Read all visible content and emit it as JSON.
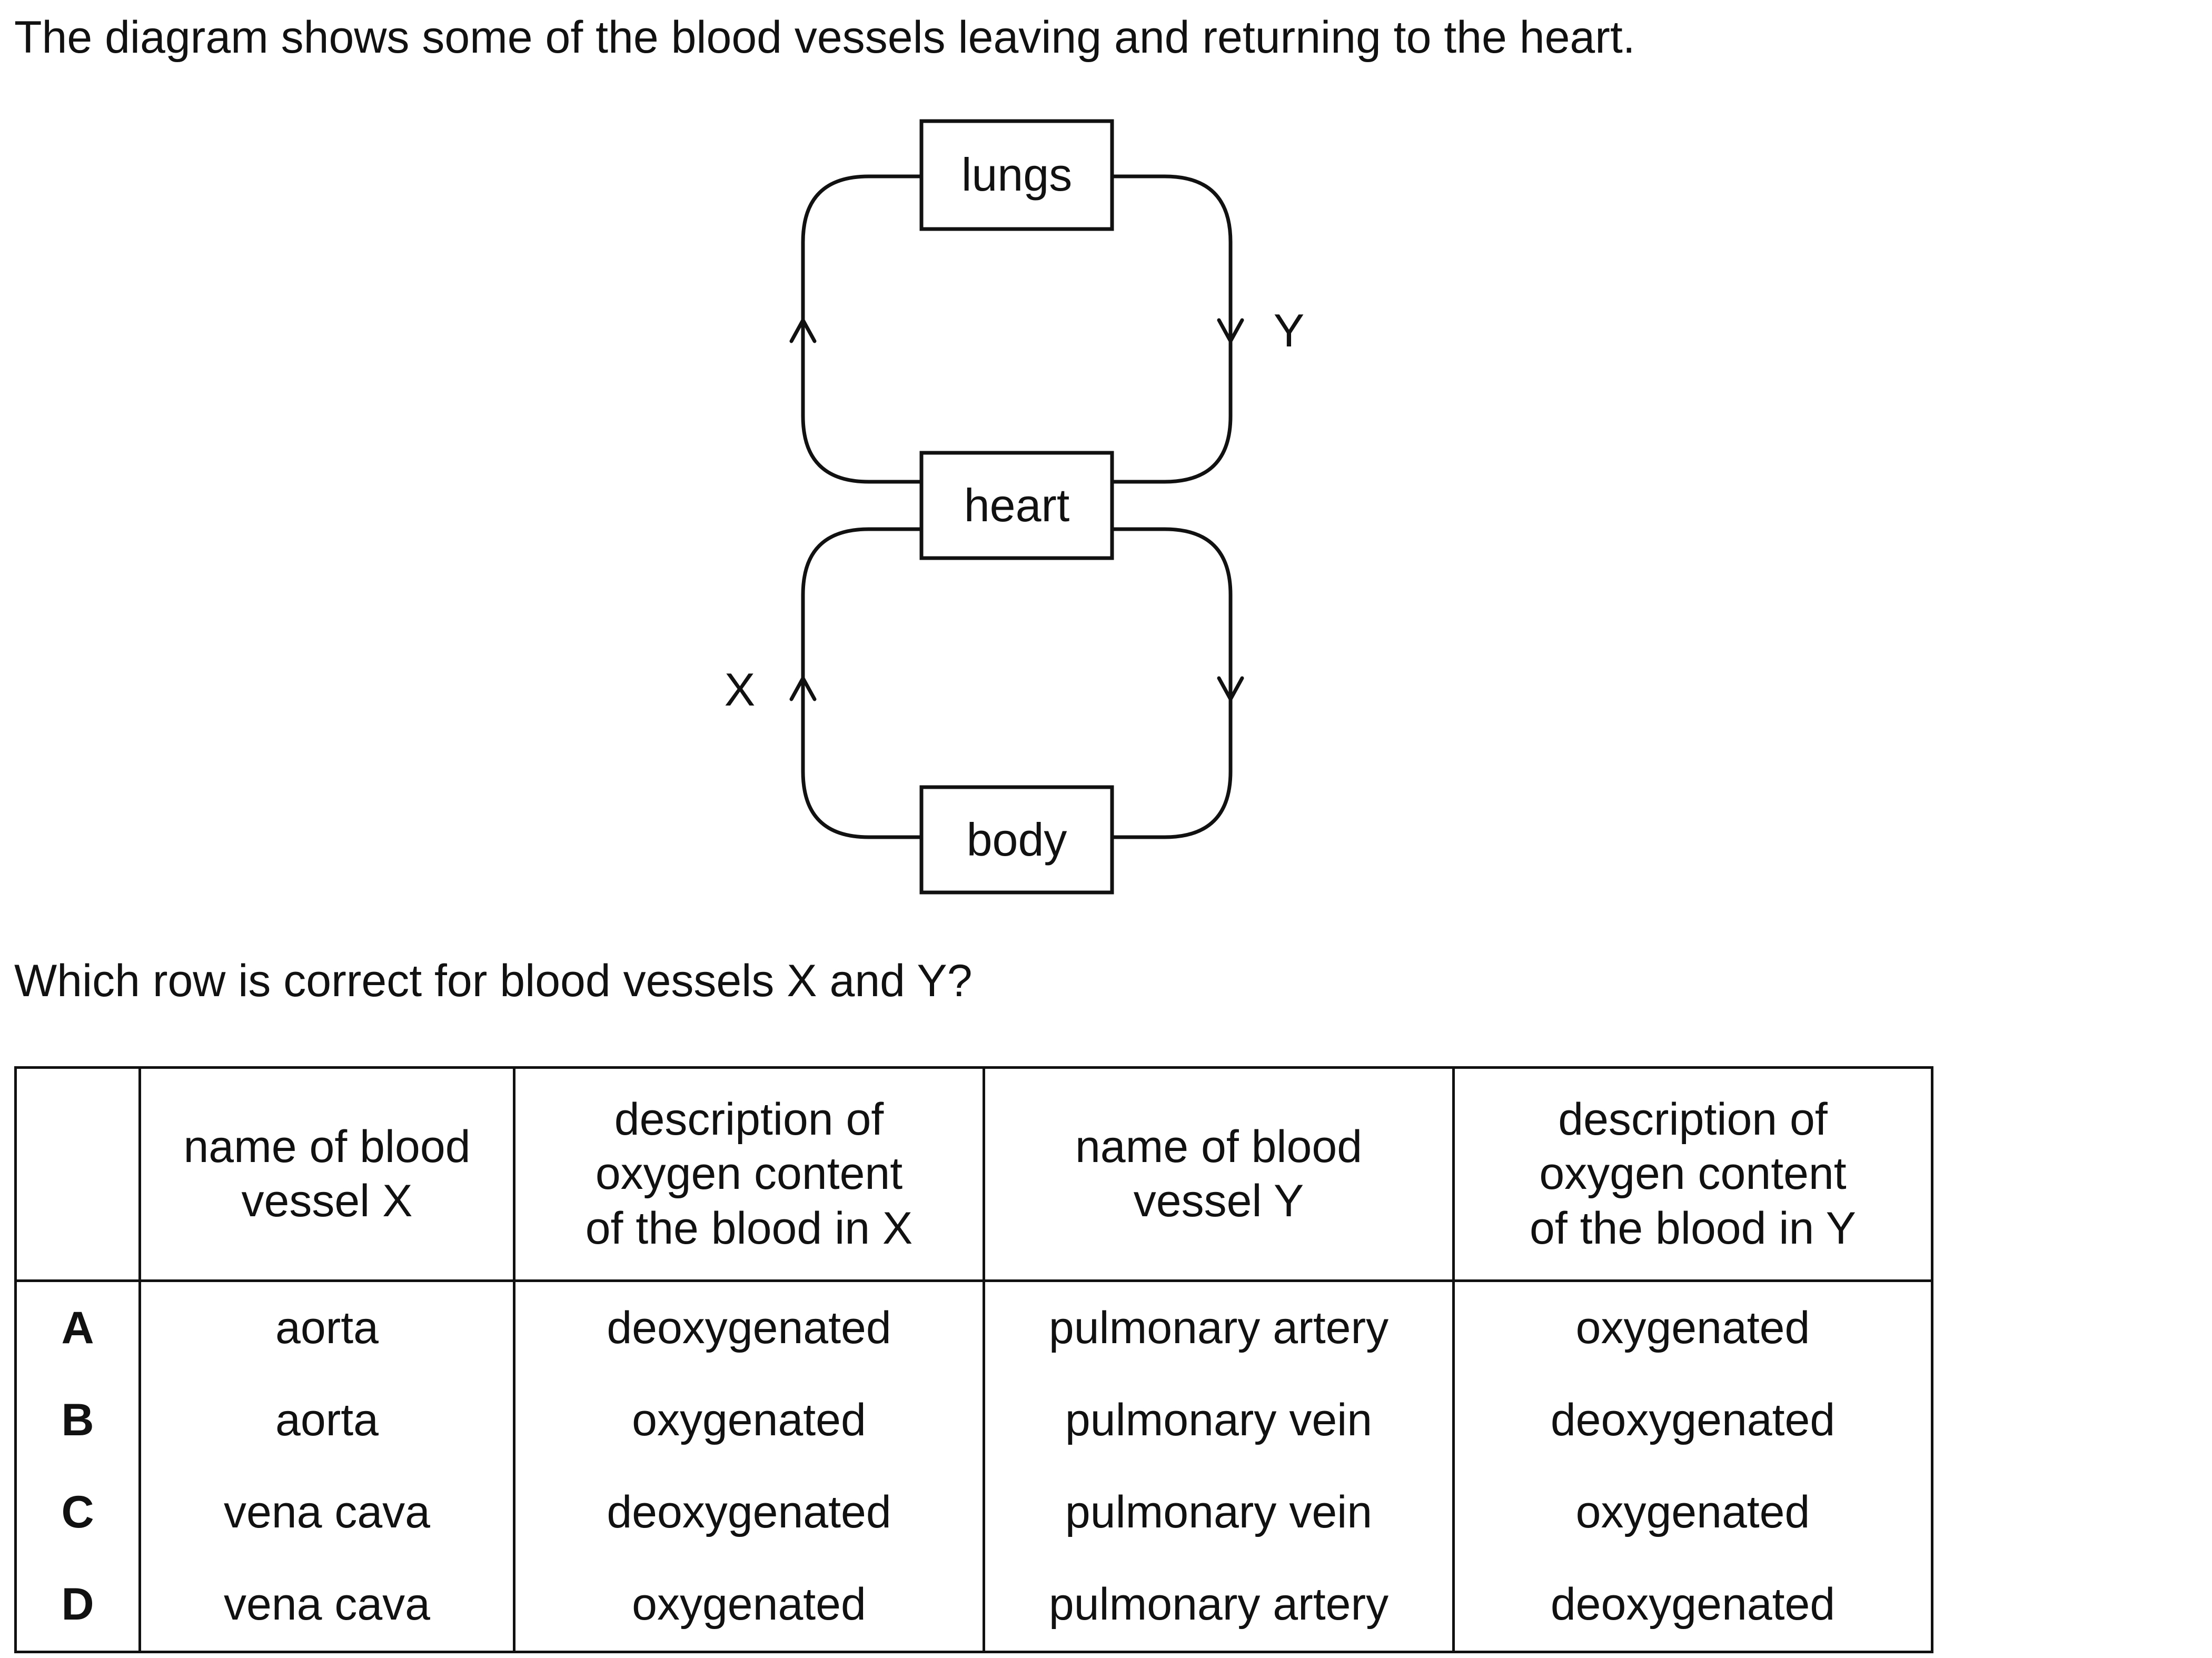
{
  "intro_text": "The diagram shows some of the blood vessels leaving and returning to the heart.",
  "diagram": {
    "boxes": {
      "lungs": "lungs",
      "heart": "heart",
      "body": "body"
    },
    "labels": {
      "x": "X",
      "y": "Y"
    }
  },
  "question_text": "Which row is correct for blood vessels X and Y?",
  "table": {
    "headers": [
      {
        "lines": []
      },
      {
        "lines": [
          "name of blood",
          "vessel X"
        ]
      },
      {
        "lines": [
          "description of",
          "oxygen content",
          "of the blood in X"
        ]
      },
      {
        "lines": [
          "name of blood",
          "vessel Y"
        ]
      },
      {
        "lines": [
          "description of",
          "oxygen content",
          "of the blood in Y"
        ]
      }
    ],
    "rows": [
      {
        "letter": "A",
        "vessel_x": "aorta",
        "oxygen_x": "deoxygenated",
        "vessel_y": "pulmonary artery",
        "oxygen_y": "oxygenated"
      },
      {
        "letter": "B",
        "vessel_x": "aorta",
        "oxygen_x": "oxygenated",
        "vessel_y": "pulmonary vein",
        "oxygen_y": "deoxygenated"
      },
      {
        "letter": "C",
        "vessel_x": "vena cava",
        "oxygen_x": "deoxygenated",
        "vessel_y": "pulmonary vein",
        "oxygen_y": "oxygenated"
      },
      {
        "letter": "D",
        "vessel_x": "vena cava",
        "oxygen_x": "oxygenated",
        "vessel_y": "pulmonary artery",
        "oxygen_y": "deoxygenated"
      }
    ]
  }
}
